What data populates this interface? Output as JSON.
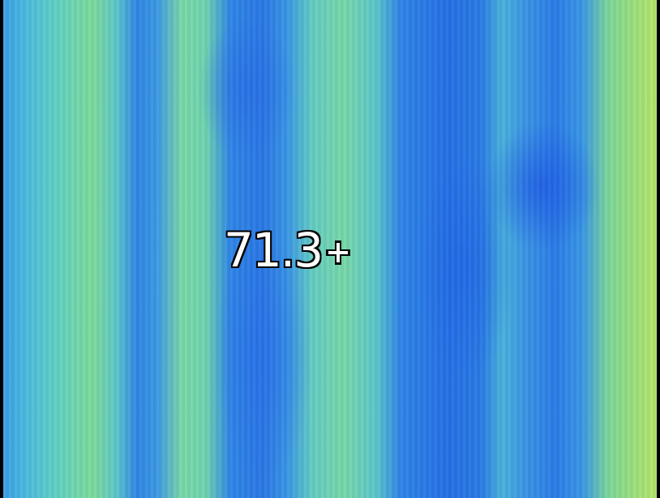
{
  "reading": "71.3"
}
